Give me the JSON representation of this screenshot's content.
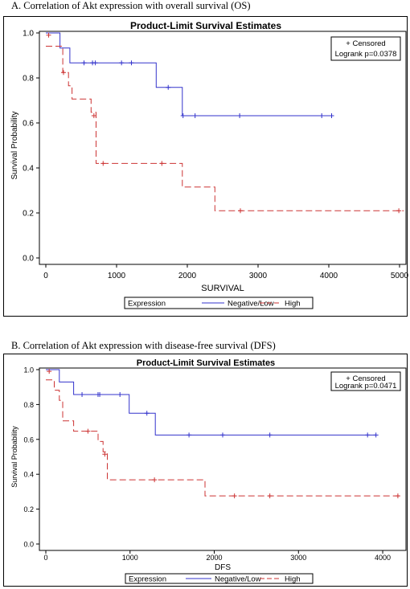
{
  "captions": {
    "a": "A.  Correlation of Akt expression with overall survival (OS)",
    "b": "B.  Correlation of Akt expression with disease-free survival (DFS)"
  },
  "chart_data": [
    {
      "type": "line",
      "step": true,
      "title": "Product-Limit Survival Estimates",
      "xlabel": "SURVIVAL",
      "ylabel": "Survival Probability",
      "xlim": [
        0,
        5000
      ],
      "ylim": [
        0,
        1.0
      ],
      "xticks": [
        "0",
        "1000",
        "2000",
        "3000",
        "4000",
        "5000"
      ],
      "yticks": [
        "0.0",
        "0.2",
        "0.4",
        "0.6",
        "0.8",
        "1.0"
      ],
      "grid": false,
      "inset_text": [
        "+ Censored",
        "Logrank p=0.0378"
      ],
      "inset_position": "top-right",
      "legend_title": "Expression",
      "legend_position": "bottom",
      "series": [
        {
          "name": "Negative/Low",
          "color": "#3333cc",
          "dash": "solid",
          "steps": [
            [
              0,
              1.0
            ],
            [
              200,
              0.933
            ],
            [
              340,
              0.867
            ],
            [
              1560,
              0.758
            ],
            [
              1930,
              0.632
            ],
            [
              4040,
              0.632
            ]
          ],
          "censored": [
            [
              540,
              0.867
            ],
            [
              660,
              0.867
            ],
            [
              700,
              0.867
            ],
            [
              1070,
              0.867
            ],
            [
              1210,
              0.867
            ],
            [
              1730,
              0.758
            ],
            [
              1940,
              0.632
            ],
            [
              2110,
              0.632
            ],
            [
              2740,
              0.632
            ],
            [
              3900,
              0.632
            ],
            [
              4040,
              0.632
            ]
          ]
        },
        {
          "name": "High",
          "color": "#cc3333",
          "dash": "dashed",
          "steps": [
            [
              0,
              0.941
            ],
            [
              240,
              0.824
            ],
            [
              320,
              0.765
            ],
            [
              370,
              0.706
            ],
            [
              640,
              0.647
            ],
            [
              710,
              0.42
            ],
            [
              1930,
              0.315
            ],
            [
              2390,
              0.21
            ],
            [
              5060,
              0.21
            ]
          ],
          "censored": [
            [
              40,
              0.99
            ],
            [
              250,
              0.824
            ],
            [
              680,
              0.632
            ],
            [
              810,
              0.42
            ],
            [
              1640,
              0.42
            ],
            [
              2750,
              0.21
            ],
            [
              4990,
              0.21
            ]
          ]
        }
      ]
    },
    {
      "type": "line",
      "step": true,
      "title": "Product-Limit Survival Estimates",
      "xlabel": "DFS",
      "ylabel": "Survival Probability",
      "xlim": [
        0,
        4200
      ],
      "ylim": [
        0,
        1.0
      ],
      "xticks": [
        "0",
        "1000",
        "2000",
        "3000",
        "4000"
      ],
      "yticks": [
        "0.0",
        "0.2",
        "0.4",
        "0.6",
        "0.8",
        "1.0"
      ],
      "grid": false,
      "inset_text": [
        "+ Censored",
        "Logrank p=0.0471"
      ],
      "inset_position": "top-right",
      "legend_title": "Expression",
      "legend_position": "bottom",
      "series": [
        {
          "name": "Negative/Low",
          "color": "#3333cc",
          "dash": "solid",
          "steps": [
            [
              0,
              1.0
            ],
            [
              160,
              0.929
            ],
            [
              330,
              0.857
            ],
            [
              990,
              0.75
            ],
            [
              1300,
              0.625
            ],
            [
              3920,
              0.625
            ]
          ],
          "censored": [
            [
              430,
              0.857
            ],
            [
              620,
              0.857
            ],
            [
              640,
              0.857
            ],
            [
              880,
              0.857
            ],
            [
              1200,
              0.75
            ],
            [
              1700,
              0.625
            ],
            [
              2100,
              0.625
            ],
            [
              2660,
              0.625
            ],
            [
              3820,
              0.625
            ],
            [
              3920,
              0.625
            ]
          ]
        },
        {
          "name": "High",
          "color": "#cc3333",
          "dash": "dashed",
          "steps": [
            [
              0,
              0.941
            ],
            [
              100,
              0.882
            ],
            [
              160,
              0.824
            ],
            [
              200,
              0.706
            ],
            [
              330,
              0.647
            ],
            [
              620,
              0.588
            ],
            [
              680,
              0.529
            ],
            [
              730,
              0.368
            ],
            [
              1890,
              0.276
            ],
            [
              4230,
              0.276
            ]
          ],
          "censored": [
            [
              40,
              0.99
            ],
            [
              500,
              0.647
            ],
            [
              700,
              0.515
            ],
            [
              1290,
              0.368
            ],
            [
              2240,
              0.276
            ],
            [
              2660,
              0.276
            ],
            [
              4180,
              0.276
            ]
          ]
        }
      ]
    }
  ]
}
